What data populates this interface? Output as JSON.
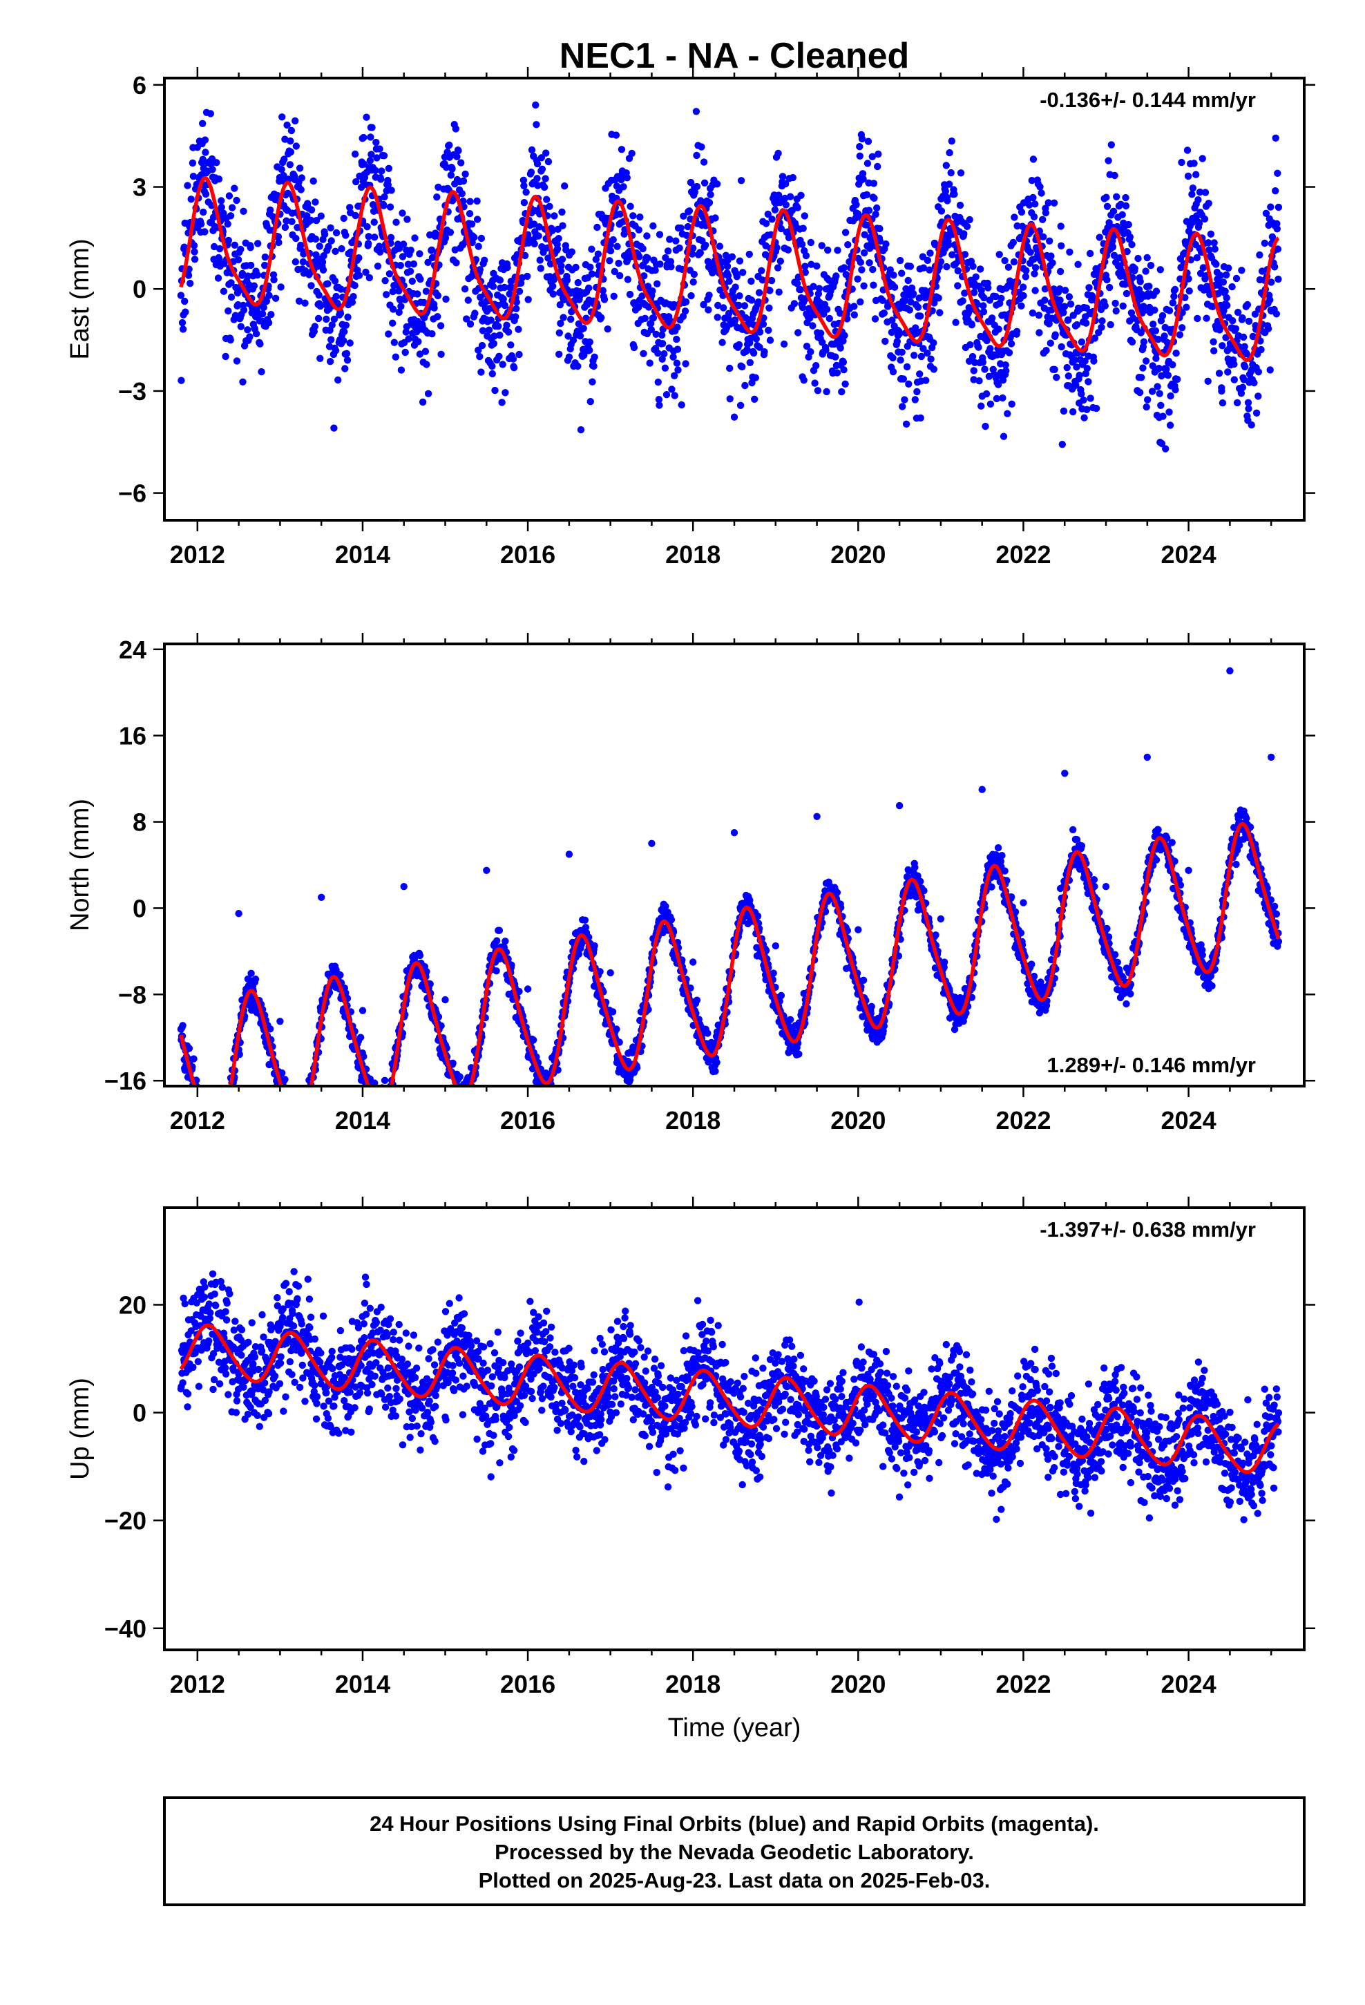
{
  "chart_data": {
    "title": "NEC1  - NA - Cleaned",
    "type": "scatter",
    "xlabel": "Time (year)",
    "xlim": [
      2011.6,
      2025.4
    ],
    "xticks": [
      "2012",
      "2014",
      "2016",
      "2018",
      "2020",
      "2022",
      "2024"
    ],
    "xtick_values": [
      2012,
      2014,
      2016,
      2018,
      2020,
      2022,
      2024
    ],
    "series_colors": {
      "positions": "#0000ff",
      "model": "#ff0000"
    },
    "panels": [
      {
        "name": "east",
        "ylabel": "East (mm)",
        "ylim": [
          -6.8,
          6.2
        ],
        "yticks": [
          "6",
          "3",
          "0",
          "-3",
          "-6"
        ],
        "ytick_values": [
          6,
          3,
          0,
          -3,
          -6
        ],
        "rate_text": "-0.136+/- 0.144 mm/yr",
        "rate_position": "top-right",
        "data_extent": [
          2011.8,
          2025.09
        ],
        "model": {
          "offset": 0.4,
          "slope": -0.136,
          "annual_cos": 1.2,
          "annual_sin": 1.2,
          "semiannual_cos": 0.3,
          "semiannual_sin": 0.3
        },
        "scatter_sd": 1.1,
        "points_approx": [
          [
            2012.0,
            1.8
          ],
          [
            2012.4,
            -1.5
          ],
          [
            2013.0,
            2.2
          ],
          [
            2013.4,
            -1.2
          ],
          [
            2014.0,
            2.0
          ],
          [
            2014.4,
            -2.0
          ],
          [
            2015.0,
            1.6
          ],
          [
            2015.4,
            -1.8
          ],
          [
            2016.0,
            1.4
          ],
          [
            2016.5,
            -2.0
          ],
          [
            2017.0,
            1.3
          ],
          [
            2017.4,
            -1.9
          ],
          [
            2018.0,
            1.2
          ],
          [
            2018.5,
            -1.0
          ],
          [
            2019.0,
            1.1
          ],
          [
            2019.4,
            -2.0
          ],
          [
            2020.0,
            0.9
          ],
          [
            2020.4,
            -2.3
          ],
          [
            2021.0,
            0.8
          ],
          [
            2021.4,
            -2.4
          ],
          [
            2022.0,
            0.6
          ],
          [
            2022.4,
            -2.6
          ],
          [
            2023.0,
            0.4
          ],
          [
            2023.4,
            -2.6
          ],
          [
            2024.0,
            0.3
          ],
          [
            2024.4,
            -3.0
          ],
          [
            2025.0,
            0.2
          ]
        ]
      },
      {
        "name": "north",
        "ylabel": "North (mm)",
        "ylim": [
          -16.5,
          24.5
        ],
        "yticks": [
          "24",
          "16",
          "8",
          "0",
          "-8",
          "-16"
        ],
        "ytick_values": [
          24,
          16,
          8,
          0,
          -8,
          -16
        ],
        "rate_text": "1.289+/- 0.146 mm/yr",
        "rate_position": "bottom-right",
        "data_extent": [
          2011.8,
          2025.09
        ],
        "model": {
          "offset": -7.6,
          "slope": 1.289,
          "annual_cos": -2.6,
          "annual_sin": -5.8,
          "semiannual_cos": 0.5,
          "semiannual_sin": 0.8
        },
        "scatter_sd": 0.8,
        "points_approx": [
          [
            2011.9,
            -13.0
          ],
          [
            2012.5,
            -0.5
          ],
          [
            2013.0,
            -10.5
          ],
          [
            2013.5,
            1.0
          ],
          [
            2014.0,
            -9.5
          ],
          [
            2014.5,
            2.0
          ],
          [
            2015.0,
            -8.5
          ],
          [
            2015.5,
            3.5
          ],
          [
            2016.0,
            -7.5
          ],
          [
            2016.5,
            5.0
          ],
          [
            2017.0,
            -6.0
          ],
          [
            2017.5,
            6.0
          ],
          [
            2018.0,
            -5.0
          ],
          [
            2018.5,
            7.0
          ],
          [
            2019.0,
            -3.5
          ],
          [
            2019.5,
            8.5
          ],
          [
            2020.0,
            -2.0
          ],
          [
            2020.5,
            9.5
          ],
          [
            2021.0,
            -1.0
          ],
          [
            2021.5,
            11.0
          ],
          [
            2022.0,
            0.5
          ],
          [
            2022.5,
            12.5
          ],
          [
            2023.0,
            2.0
          ],
          [
            2023.5,
            14.0
          ],
          [
            2024.0,
            3.5
          ],
          [
            2024.5,
            22.0
          ],
          [
            2025.0,
            14.0
          ]
        ]
      },
      {
        "name": "up",
        "ylabel": "Up (mm)",
        "ylim": [
          -44.0,
          38.0
        ],
        "yticks": [
          "20",
          "0",
          "-20",
          "-40"
        ],
        "ytick_values": [
          20,
          0,
          -20,
          -40
        ],
        "rate_text": "-1.397+/- 0.638 mm/yr",
        "rate_position": "top-right",
        "data_extent": [
          2011.8,
          2025.09
        ],
        "model": {
          "offset": 3.0,
          "slope": -1.397,
          "annual_cos": 2.5,
          "annual_sin": 4.0,
          "semiannual_cos": 0.4,
          "semiannual_sin": 0.4
        },
        "scatter_sd": 4.5,
        "points_approx": [
          [
            2012.0,
            12.0
          ],
          [
            2012.5,
            6.0
          ],
          [
            2012.8,
            14.0
          ],
          [
            2013.4,
            3.0
          ],
          [
            2013.8,
            12.0
          ],
          [
            2014.4,
            2.0
          ],
          [
            2014.8,
            10.0
          ],
          [
            2015.4,
            0.0
          ],
          [
            2015.8,
            9.0
          ],
          [
            2016.4,
            -2.0
          ],
          [
            2016.8,
            7.0
          ],
          [
            2017.4,
            -4.0
          ],
          [
            2017.8,
            6.0
          ],
          [
            2018.4,
            -5.0
          ],
          [
            2018.8,
            5.0
          ],
          [
            2019.4,
            -7.0
          ],
          [
            2019.8,
            3.0
          ],
          [
            2020.3,
            -10.0
          ],
          [
            2020.8,
            1.0
          ],
          [
            2021.3,
            -10.0
          ],
          [
            2021.8,
            -1.0
          ],
          [
            2022.3,
            -12.0
          ],
          [
            2022.8,
            -2.0
          ],
          [
            2023.3,
            -13.0
          ],
          [
            2023.8,
            -3.0
          ],
          [
            2024.4,
            -14.0
          ],
          [
            2024.8,
            -5.0
          ]
        ]
      }
    ]
  },
  "footer": {
    "line1": "24 Hour Positions Using Final Orbits (blue) and Rapid Orbits (magenta).",
    "line2": "Processed by the Nevada Geodetic Laboratory.",
    "line3": "Plotted on 2025-Aug-23. Last data on 2025-Feb-03."
  }
}
